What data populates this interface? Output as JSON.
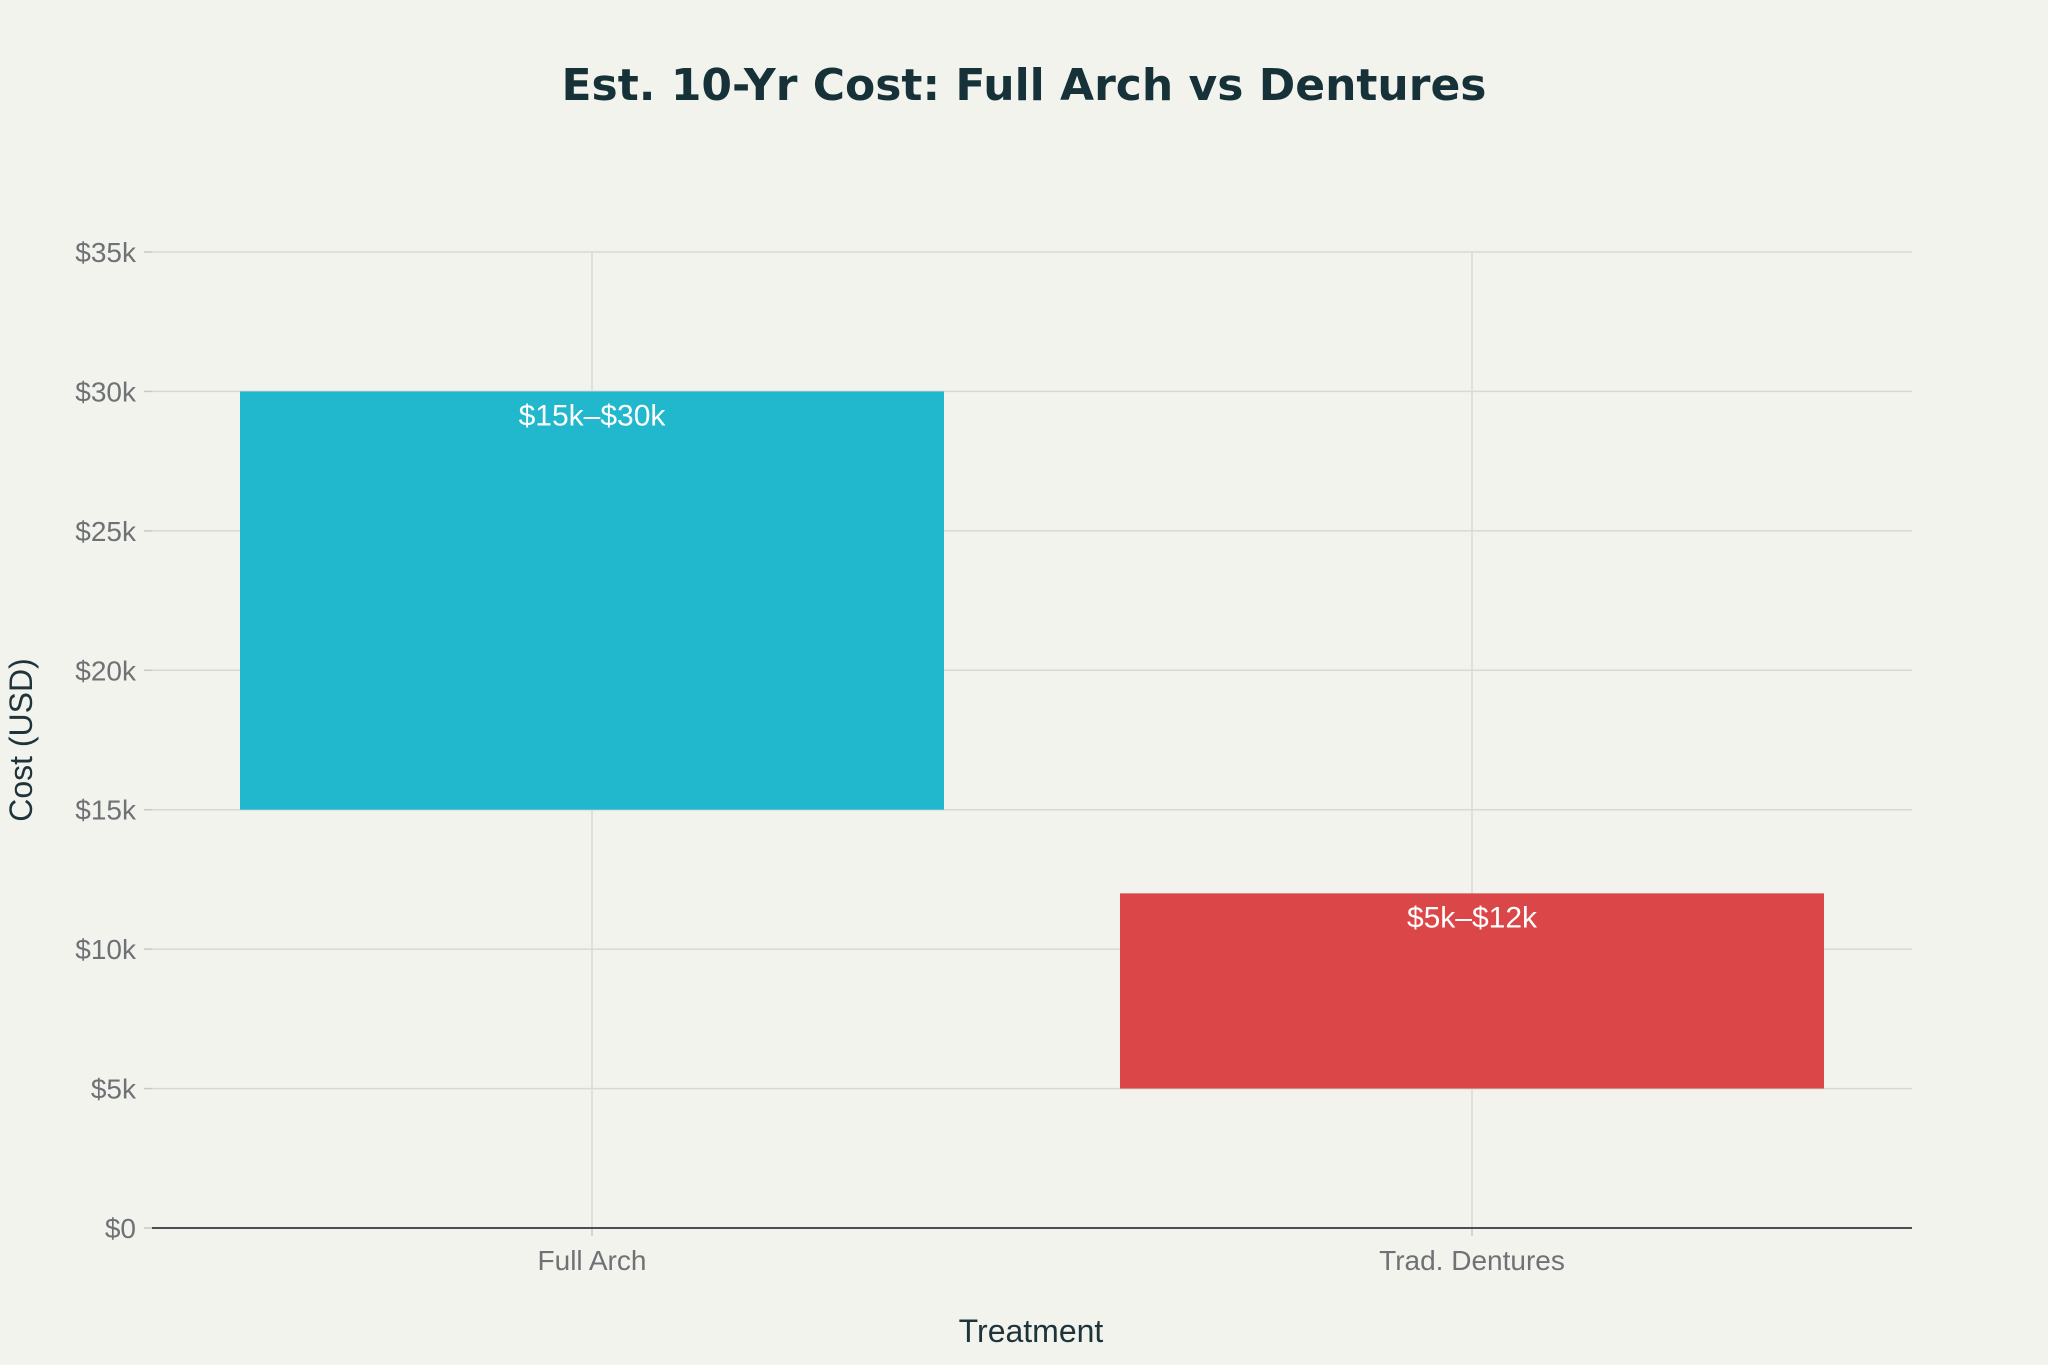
{
  "chart_data": {
    "type": "bar",
    "title": "Est. 10-Yr Cost: Full Arch vs Dentures",
    "xlabel": "Treatment",
    "ylabel": "Cost (USD)",
    "categories": [
      "Full Arch",
      "Trad. Dentures"
    ],
    "ranges": [
      {
        "category": "Full Arch",
        "low": 15000,
        "high": 30000,
        "label": "$15k–$30k",
        "color": "#21b8cd"
      },
      {
        "category": "Trad. Dentures",
        "low": 5000,
        "high": 12000,
        "label": "$5k–$12k",
        "color": "#db4748"
      }
    ],
    "ylim": [
      0,
      35000
    ],
    "yticks": [
      0,
      5000,
      10000,
      15000,
      20000,
      25000,
      30000,
      35000
    ],
    "ytick_labels": [
      "$0",
      "$5k",
      "$10k",
      "$15k",
      "$20k",
      "$25k",
      "$30k",
      "$35k"
    ],
    "grid": true,
    "legend": "none"
  }
}
